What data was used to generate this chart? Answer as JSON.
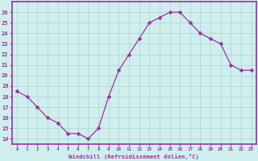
{
  "x": [
    0,
    1,
    2,
    3,
    4,
    5,
    6,
    7,
    8,
    9,
    10,
    11,
    12,
    13,
    14,
    15,
    16,
    17,
    18,
    19,
    20,
    21,
    22,
    23
  ],
  "y": [
    18.5,
    18.0,
    17.0,
    16.0,
    15.5,
    14.5,
    14.5,
    14.0,
    15.0,
    18.0,
    20.5,
    22.0,
    23.5,
    25.0,
    25.5,
    26.0,
    26.0,
    25.0,
    24.0,
    23.5,
    23.0,
    21.0,
    20.5,
    20.5
  ],
  "line_color": "#993399",
  "marker": "D",
  "marker_size": 2.5,
  "xlabel": "Windchill (Refroidissement éolien,°C)",
  "ylabel_ticks": [
    14,
    15,
    16,
    17,
    18,
    19,
    20,
    21,
    22,
    23,
    24,
    25,
    26
  ],
  "xtick_labels": [
    "0",
    "1",
    "2",
    "3",
    "4",
    "5",
    "6",
    "7",
    "8",
    "9",
    "10",
    "11",
    "12",
    "13",
    "14",
    "15",
    "16",
    "17",
    "18",
    "19",
    "20",
    "21",
    "22",
    "23"
  ],
  "ylim": [
    13.5,
    27.0
  ],
  "xlim": [
    -0.5,
    23.5
  ],
  "bg_color": "#d0eeee",
  "grid_color": "#b0d8d8",
  "tick_color": "#993399",
  "label_color": "#993399",
  "border_color": "#993399"
}
